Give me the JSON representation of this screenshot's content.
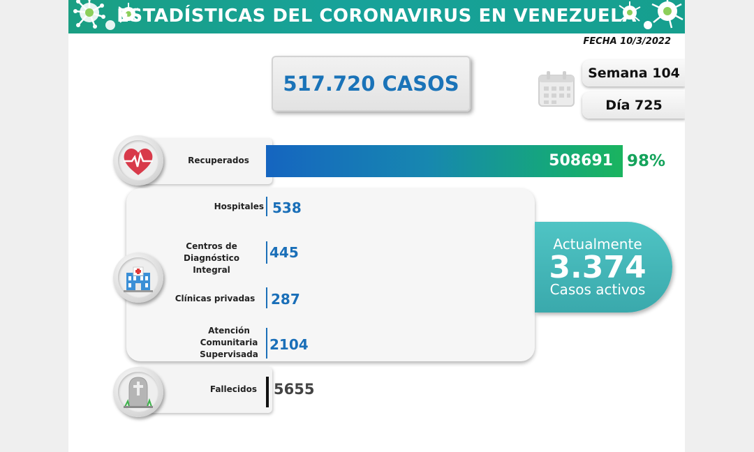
{
  "header": {
    "title": "ESTADÍSTICAS DEL CORONAVIRUS EN VENEZUELA",
    "date_label": "FECHA 10/3/2022"
  },
  "summary": {
    "total_cases_label": "517.720 CASOS",
    "week_label": "Semana 104",
    "day_label": "Día 725"
  },
  "recovered": {
    "label": "Recuperados",
    "value_label": "508691",
    "percent_label": "98%"
  },
  "hospitalized": [
    {
      "label_lines": [
        "Hospitales"
      ],
      "value_label": "538"
    },
    {
      "label_lines": [
        "Centros de",
        "Diagnóstico Integral"
      ],
      "value_label": "445"
    },
    {
      "label_lines": [
        "Clínicas privadas"
      ],
      "value_label": "287"
    },
    {
      "label_lines": [
        "Atención",
        "Comunitaria",
        "Supervisada"
      ],
      "value_label": "2104"
    }
  ],
  "active": {
    "top_label": "Actualmente",
    "value_label": "3.374",
    "bottom_label": "Casos activos"
  },
  "deceased": {
    "label": "Fallecidos",
    "value_label": "5655"
  },
  "colors": {
    "banner": "#17a29a",
    "accent_blue": "#1a6fb8",
    "accent_green": "#14a35b",
    "active_teal": "#45b8ba"
  },
  "icons": [
    "virus-icon",
    "calendar-icon",
    "heart-pulse-icon",
    "hospital-icon",
    "tombstone-icon"
  ],
  "chart_data": {
    "type": "bar",
    "title": "ESTADÍSTICAS DEL CORONAVIRUS EN VENEZUELA",
    "total_cases": 517720,
    "categories": [
      "Recuperados",
      "Hospitales",
      "Centros de Diagnóstico Integral",
      "Clínicas privadas",
      "Atención Comunitaria Supervisada",
      "Fallecidos"
    ],
    "values": [
      508691,
      538,
      445,
      287,
      2104,
      5655
    ],
    "recovered_percent": 98,
    "active_cases": 3374,
    "week": 104,
    "day": 725,
    "date": "10/3/2022"
  }
}
